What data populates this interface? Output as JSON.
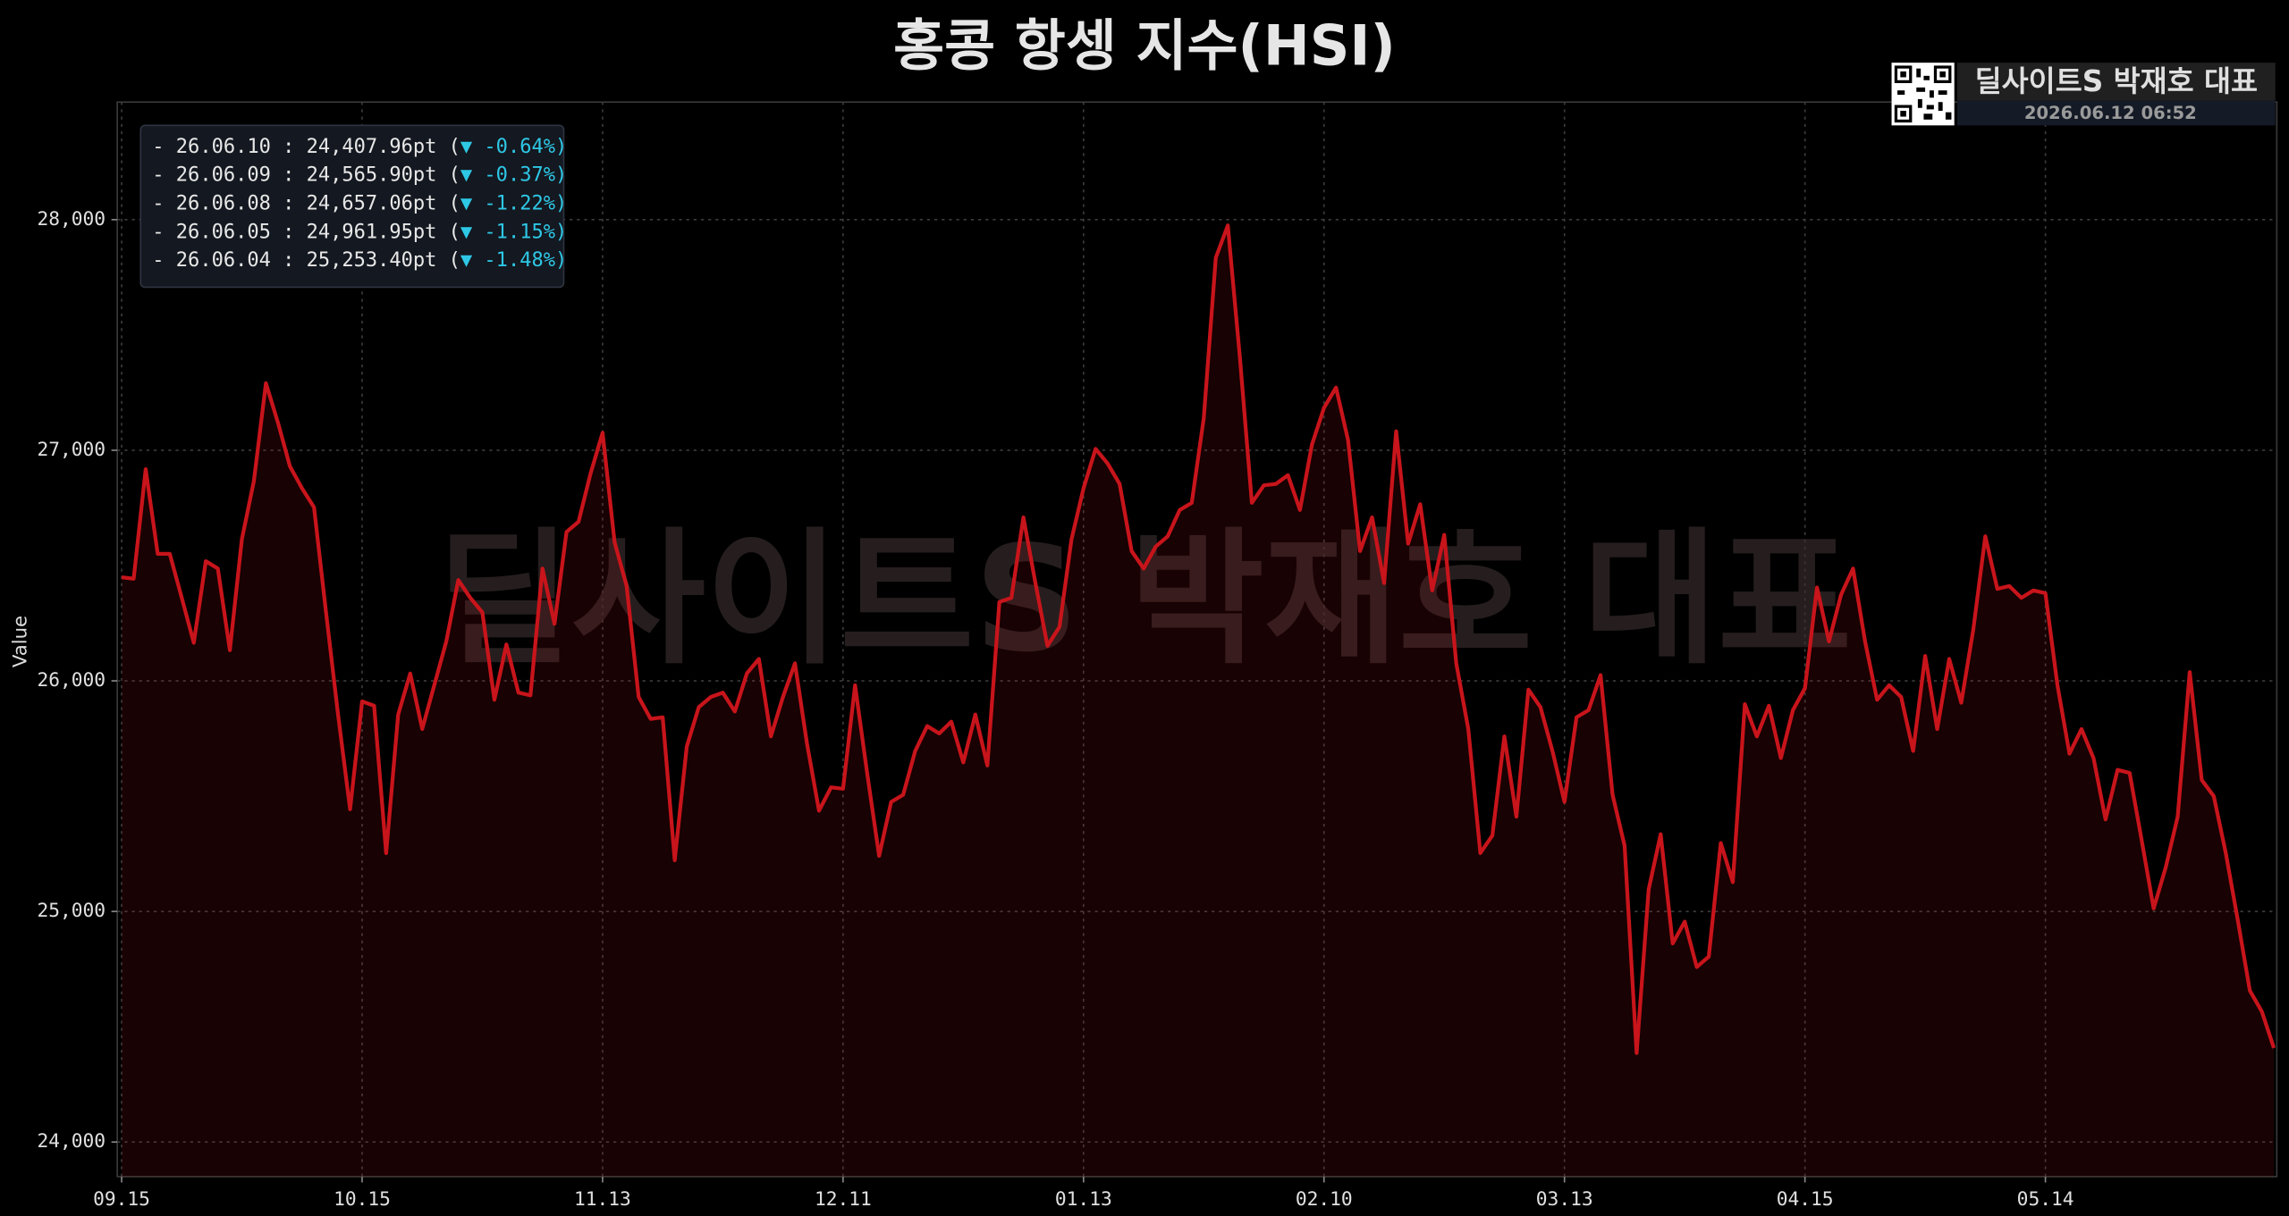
{
  "chart_data": {
    "type": "line",
    "title": "홍콩 항셍 지수(HSI)",
    "y_label": "Value",
    "watermark": "딜사이트S 박재호 대표",
    "brand": {
      "name": "딜사이트S 박재호 대표",
      "timestamp": "2026.06.12 06:52"
    },
    "annotations": [
      {
        "text": "- 26.06.10 : 24,407.96pt (",
        "change": "▼ -0.64%)"
      },
      {
        "text": "- 26.06.09 : 24,565.90pt (",
        "change": "▼ -0.37%)"
      },
      {
        "text": "- 26.06.08 : 24,657.06pt (",
        "change": "▼ -1.22%)"
      },
      {
        "text": "- 26.06.05 : 24,961.95pt (",
        "change": "▼ -1.15%)"
      },
      {
        "text": "- 26.06.04 : 25,253.40pt (",
        "change": "▼ -1.48%)"
      }
    ],
    "categories": [
      "09.15",
      null,
      null,
      null,
      null,
      null,
      null,
      null,
      null,
      null,
      null,
      null,
      null,
      null,
      null,
      null,
      null,
      null,
      null,
      null,
      "10.15",
      null,
      null,
      null,
      null,
      null,
      null,
      null,
      null,
      null,
      null,
      null,
      null,
      null,
      null,
      null,
      null,
      null,
      null,
      null,
      "11.13",
      null,
      null,
      null,
      null,
      null,
      null,
      null,
      null,
      null,
      null,
      null,
      null,
      null,
      null,
      null,
      null,
      null,
      null,
      null,
      "12.11",
      null,
      null,
      null,
      null,
      null,
      null,
      null,
      null,
      null,
      null,
      null,
      null,
      null,
      null,
      null,
      null,
      null,
      null,
      null,
      "01.13",
      null,
      null,
      null,
      null,
      null,
      null,
      null,
      null,
      null,
      null,
      null,
      null,
      null,
      null,
      null,
      null,
      null,
      null,
      null,
      "02.10",
      null,
      null,
      null,
      null,
      null,
      null,
      null,
      null,
      null,
      null,
      null,
      null,
      null,
      null,
      null,
      null,
      null,
      null,
      null,
      "03.13",
      null,
      null,
      null,
      null,
      null,
      null,
      null,
      null,
      null,
      null,
      null,
      null,
      null,
      null,
      null,
      null,
      null,
      null,
      null,
      "04.15",
      null,
      null,
      null,
      null,
      null,
      null,
      null,
      null,
      null,
      null,
      null,
      null,
      null,
      null,
      null,
      null,
      null,
      null,
      null,
      "05.14",
      null,
      null,
      null,
      null,
      null,
      null,
      null,
      null,
      null,
      null,
      null,
      null,
      null,
      null,
      null,
      null,
      null,
      null,
      null
    ],
    "series": [
      {
        "name": "HSI",
        "color": "#c8141b",
        "values": [
          26449,
          26443,
          26918,
          26551,
          26551,
          26360,
          26165,
          26519,
          26487,
          26133,
          26614,
          26867,
          27291,
          27120,
          26930,
          26835,
          26753,
          26297,
          25854,
          25443,
          25911,
          25892,
          25253,
          25854,
          26032,
          25791,
          25981,
          26171,
          26437,
          26360,
          26297,
          25918,
          26158,
          25949,
          25937,
          26487,
          26247,
          26646,
          26690,
          26899,
          27076,
          26601,
          26411,
          25930,
          25835,
          25842,
          25222,
          25715,
          25886,
          25930,
          25949,
          25867,
          26032,
          26095,
          25759,
          25930,
          26076,
          25728,
          25437,
          25538,
          25532,
          25981,
          25601,
          25241,
          25475,
          25506,
          25696,
          25804,
          25772,
          25823,
          25646,
          25854,
          25633,
          26342,
          26360,
          26709,
          26424,
          26152,
          26234,
          26614,
          26835,
          27006,
          26943,
          26854,
          26563,
          26487,
          26582,
          26627,
          26741,
          26772,
          27139,
          27835,
          27975,
          27405,
          26772,
          26848,
          26854,
          26892,
          26741,
          27025,
          27184,
          27272,
          27044,
          26563,
          26709,
          26424,
          27082,
          26595,
          26766,
          26392,
          26633,
          26076,
          25791,
          25253,
          25329,
          25759,
          25411,
          25962,
          25886,
          25696,
          25475,
          25842,
          25873,
          26025,
          25506,
          25285,
          24386,
          25095,
          25335,
          24861,
          24956,
          24759,
          24804,
          25297,
          25127,
          25899,
          25759,
          25892,
          25665,
          25873,
          25968,
          26405,
          26171,
          26373,
          26487,
          26171,
          25918,
          25981,
          25930,
          25696,
          26108,
          25791,
          26095,
          25905,
          26222,
          26627,
          26399,
          26411,
          26360,
          26392,
          26380,
          25981,
          25684,
          25791,
          25665,
          25399,
          25614,
          25601,
          25310,
          25013,
          25190,
          25411,
          26038,
          25570,
          25500,
          25253.4,
          24961.95,
          24657.06,
          24565.9,
          24407.96
        ]
      }
    ],
    "ylim": [
      23850,
      28510
    ],
    "yticks": [
      {
        "value": 24000,
        "label": "24,000"
      },
      {
        "value": 25000,
        "label": "25,000"
      },
      {
        "value": 26000,
        "label": "26,000"
      },
      {
        "value": 27000,
        "label": "27,000"
      },
      {
        "value": 28000,
        "label": "28,000"
      }
    ],
    "grid": true
  }
}
